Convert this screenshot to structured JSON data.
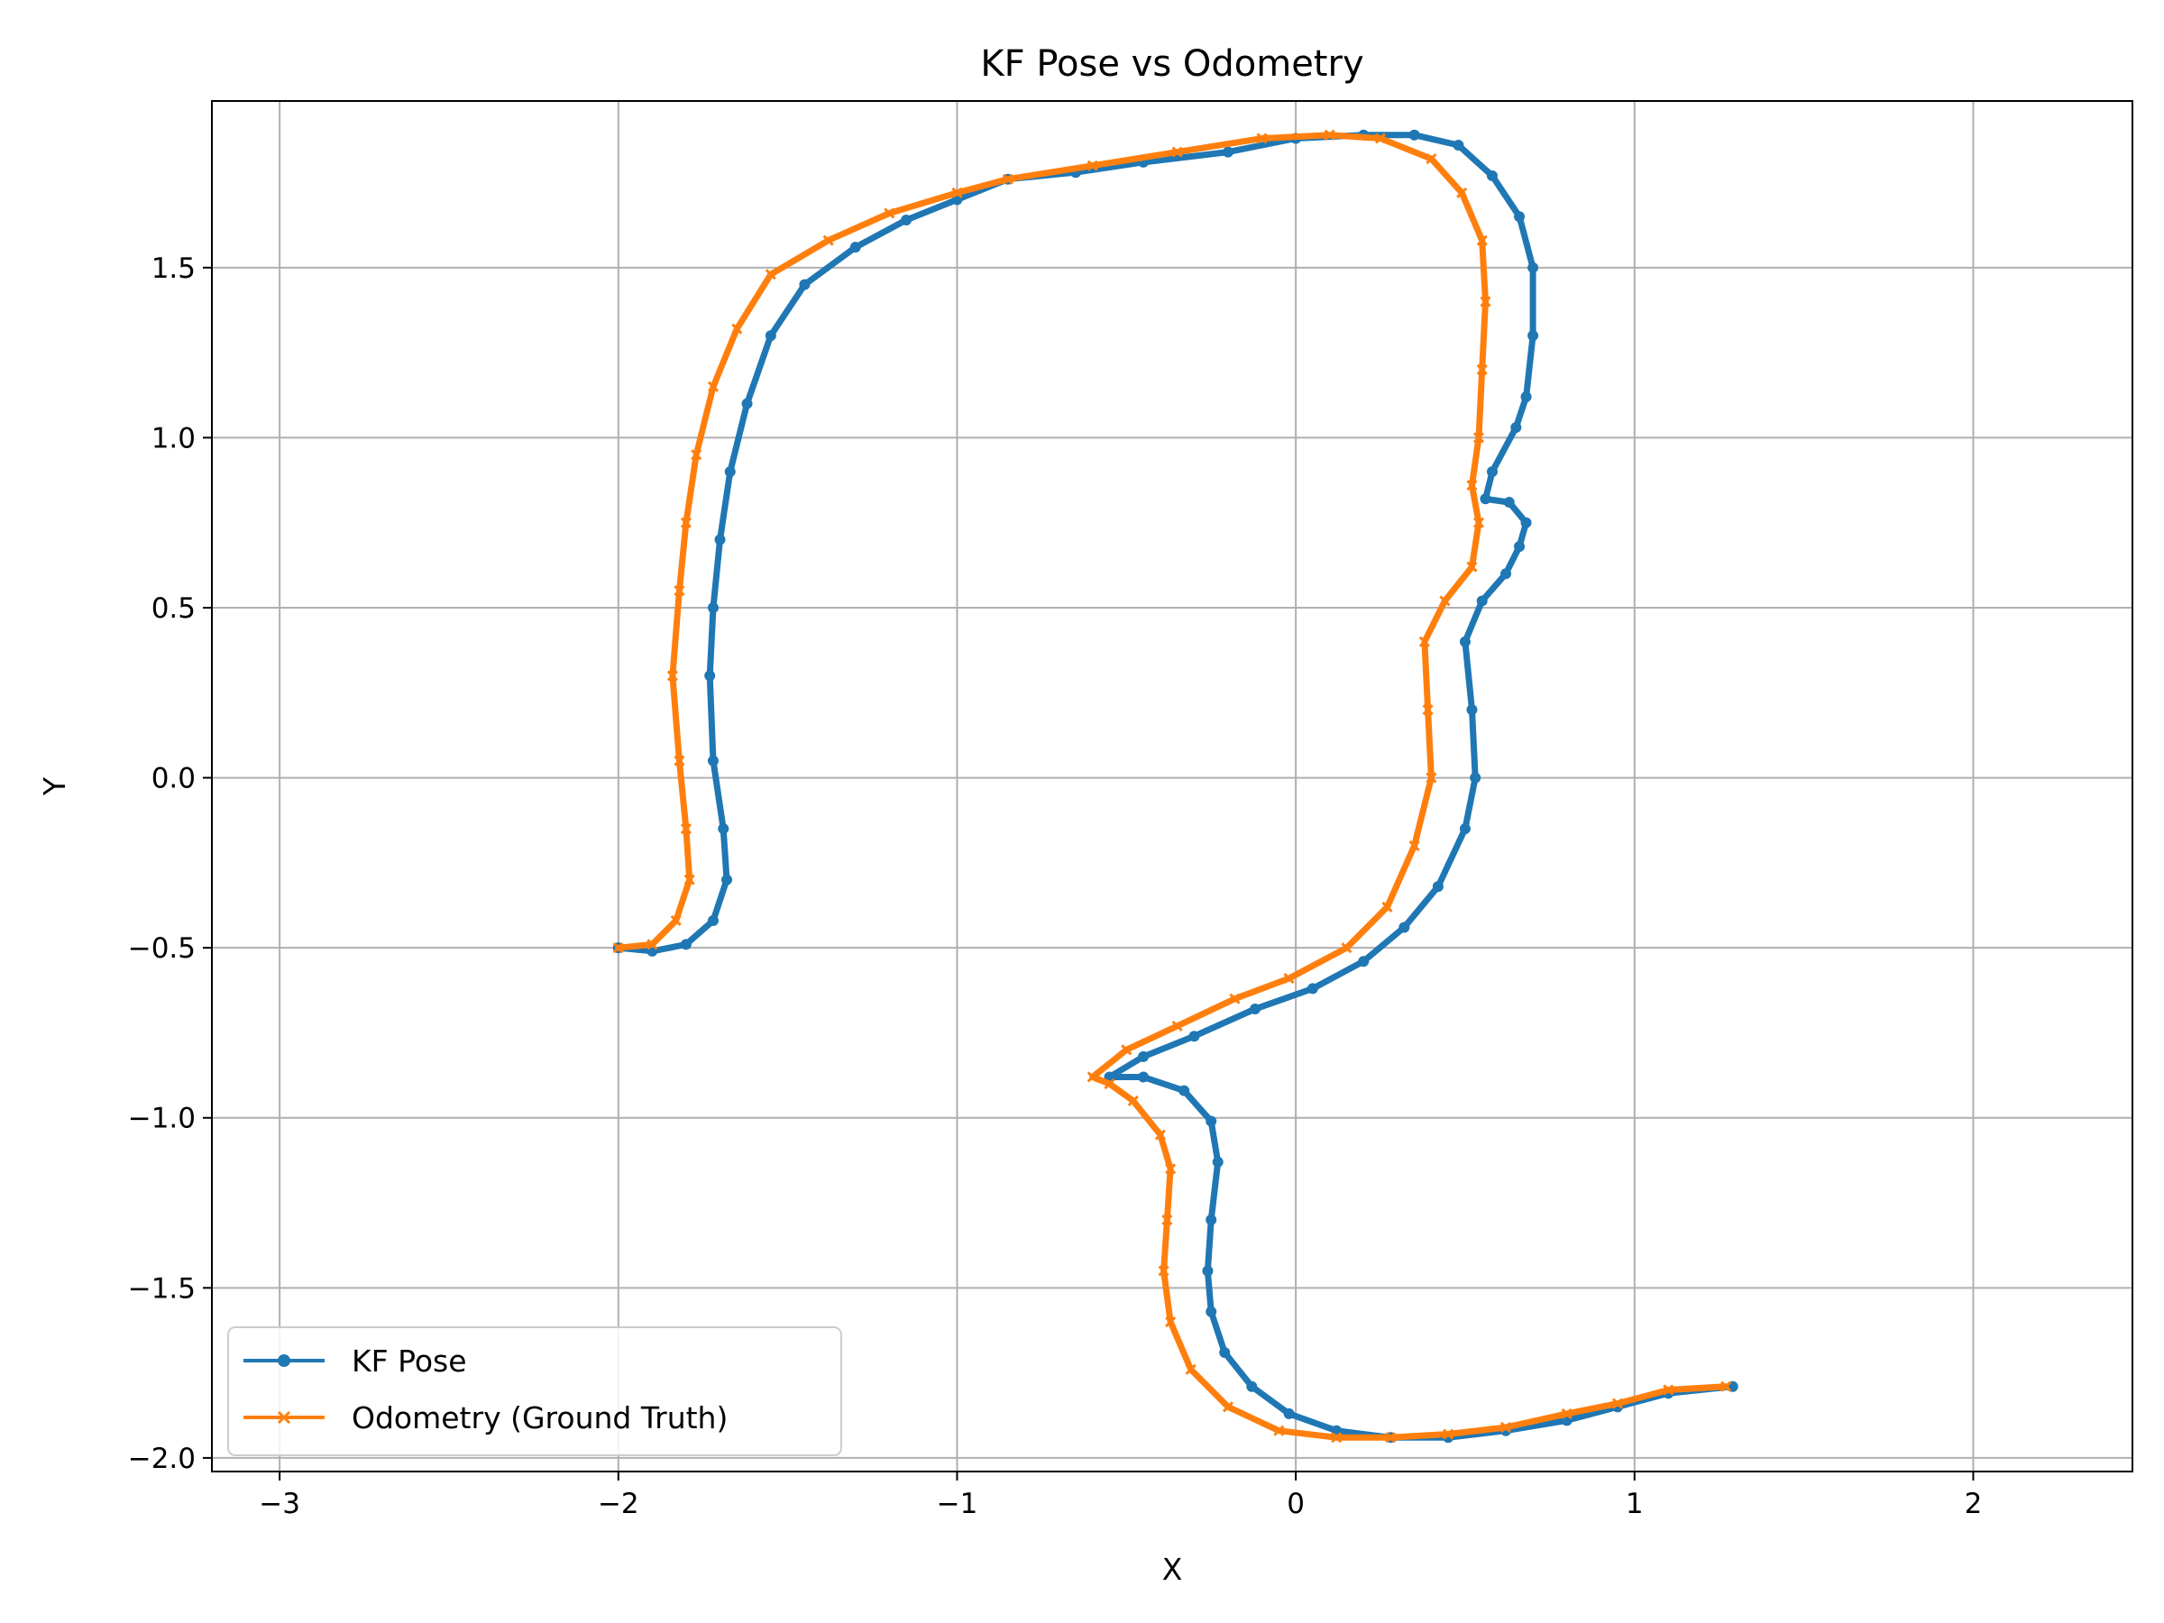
{
  "chart_data": {
    "type": "line",
    "title": "KF Pose vs Odometry",
    "xlabel": "X",
    "ylabel": "Y",
    "xlim": [
      -3.2,
      2.47
    ],
    "ylim": [
      -2.04,
      1.99
    ],
    "grid": true,
    "legend_position": "bottom-left",
    "x_ticks": [
      {
        "value": -3,
        "label": "−3"
      },
      {
        "value": -2,
        "label": "−2"
      },
      {
        "value": -1,
        "label": "−1"
      },
      {
        "value": 0,
        "label": "0"
      },
      {
        "value": 1,
        "label": "1"
      },
      {
        "value": 2,
        "label": "2"
      }
    ],
    "y_ticks": [
      {
        "value": -2.0,
        "label": "−2.0"
      },
      {
        "value": -1.5,
        "label": "−1.5"
      },
      {
        "value": -1.0,
        "label": "−1.0"
      },
      {
        "value": -0.5,
        "label": "−0.5"
      },
      {
        "value": 0.0,
        "label": "0.0"
      },
      {
        "value": 0.5,
        "label": "0.5"
      },
      {
        "value": 1.0,
        "label": "1.0"
      },
      {
        "value": 1.5,
        "label": "1.5"
      }
    ],
    "series": [
      {
        "name": "KF Pose",
        "color": "#1f77b4",
        "marker": "circle",
        "points": [
          [
            1.29,
            -1.79
          ],
          [
            1.1,
            -1.81
          ],
          [
            0.95,
            -1.85
          ],
          [
            0.8,
            -1.89
          ],
          [
            0.62,
            -1.92
          ],
          [
            0.45,
            -1.94
          ],
          [
            0.28,
            -1.94
          ],
          [
            0.12,
            -1.92
          ],
          [
            -0.02,
            -1.87
          ],
          [
            -0.13,
            -1.79
          ],
          [
            -0.21,
            -1.69
          ],
          [
            -0.25,
            -1.57
          ],
          [
            -0.26,
            -1.45
          ],
          [
            -0.25,
            -1.3
          ],
          [
            -0.23,
            -1.13
          ],
          [
            -0.25,
            -1.01
          ],
          [
            -0.33,
            -0.92
          ],
          [
            -0.45,
            -0.88
          ],
          [
            -0.55,
            -0.88
          ],
          [
            -0.45,
            -0.82
          ],
          [
            -0.3,
            -0.76
          ],
          [
            -0.12,
            -0.68
          ],
          [
            0.05,
            -0.62
          ],
          [
            0.2,
            -0.54
          ],
          [
            0.32,
            -0.44
          ],
          [
            0.42,
            -0.32
          ],
          [
            0.5,
            -0.15
          ],
          [
            0.53,
            0.0
          ],
          [
            0.52,
            0.2
          ],
          [
            0.5,
            0.4
          ],
          [
            0.55,
            0.52
          ],
          [
            0.62,
            0.6
          ],
          [
            0.66,
            0.68
          ],
          [
            0.68,
            0.75
          ],
          [
            0.63,
            0.81
          ],
          [
            0.56,
            0.82
          ],
          [
            0.58,
            0.9
          ],
          [
            0.65,
            1.03
          ],
          [
            0.68,
            1.12
          ],
          [
            0.7,
            1.3
          ],
          [
            0.7,
            1.5
          ],
          [
            0.66,
            1.65
          ],
          [
            0.58,
            1.77
          ],
          [
            0.48,
            1.86
          ],
          [
            0.35,
            1.89
          ],
          [
            0.2,
            1.89
          ],
          [
            0.0,
            1.88
          ],
          [
            -0.2,
            1.84
          ],
          [
            -0.45,
            1.81
          ],
          [
            -0.65,
            1.78
          ],
          [
            -0.85,
            1.76
          ],
          [
            -1.0,
            1.7
          ],
          [
            -1.15,
            1.64
          ],
          [
            -1.3,
            1.56
          ],
          [
            -1.45,
            1.45
          ],
          [
            -1.55,
            1.3
          ],
          [
            -1.62,
            1.1
          ],
          [
            -1.67,
            0.9
          ],
          [
            -1.7,
            0.7
          ],
          [
            -1.72,
            0.5
          ],
          [
            -1.73,
            0.3
          ],
          [
            -1.72,
            0.05
          ],
          [
            -1.69,
            -0.15
          ],
          [
            -1.68,
            -0.3
          ],
          [
            -1.72,
            -0.42
          ],
          [
            -1.8,
            -0.49
          ],
          [
            -1.9,
            -0.51
          ],
          [
            -2.0,
            -0.5
          ]
        ]
      },
      {
        "name": "Odometry (Ground Truth)",
        "color": "#ff7f0e",
        "marker": "x",
        "points": [
          [
            1.27,
            -1.79
          ],
          [
            1.1,
            -1.8
          ],
          [
            0.95,
            -1.84
          ],
          [
            0.8,
            -1.87
          ],
          [
            0.62,
            -1.91
          ],
          [
            0.45,
            -1.93
          ],
          [
            0.28,
            -1.94
          ],
          [
            0.12,
            -1.94
          ],
          [
            -0.05,
            -1.92
          ],
          [
            -0.2,
            -1.85
          ],
          [
            -0.31,
            -1.74
          ],
          [
            -0.37,
            -1.6
          ],
          [
            -0.39,
            -1.45
          ],
          [
            -0.38,
            -1.3
          ],
          [
            -0.37,
            -1.15
          ],
          [
            -0.4,
            -1.05
          ],
          [
            -0.48,
            -0.95
          ],
          [
            -0.55,
            -0.9
          ],
          [
            -0.6,
            -0.88
          ],
          [
            -0.5,
            -0.8
          ],
          [
            -0.35,
            -0.73
          ],
          [
            -0.18,
            -0.65
          ],
          [
            -0.02,
            -0.59
          ],
          [
            0.15,
            -0.5
          ],
          [
            0.27,
            -0.38
          ],
          [
            0.35,
            -0.2
          ],
          [
            0.4,
            0.0
          ],
          [
            0.39,
            0.2
          ],
          [
            0.38,
            0.4
          ],
          [
            0.44,
            0.52
          ],
          [
            0.52,
            0.62
          ],
          [
            0.54,
            0.75
          ],
          [
            0.52,
            0.86
          ],
          [
            0.54,
            1.0
          ],
          [
            0.55,
            1.2
          ],
          [
            0.56,
            1.4
          ],
          [
            0.55,
            1.58
          ],
          [
            0.49,
            1.72
          ],
          [
            0.4,
            1.82
          ],
          [
            0.25,
            1.88
          ],
          [
            0.1,
            1.89
          ],
          [
            -0.1,
            1.88
          ],
          [
            -0.35,
            1.84
          ],
          [
            -0.6,
            1.8
          ],
          [
            -0.85,
            1.76
          ],
          [
            -1.0,
            1.72
          ],
          [
            -1.2,
            1.66
          ],
          [
            -1.38,
            1.58
          ],
          [
            -1.55,
            1.48
          ],
          [
            -1.65,
            1.32
          ],
          [
            -1.72,
            1.15
          ],
          [
            -1.77,
            0.95
          ],
          [
            -1.8,
            0.75
          ],
          [
            -1.82,
            0.55
          ],
          [
            -1.84,
            0.3
          ],
          [
            -1.82,
            0.05
          ],
          [
            -1.8,
            -0.15
          ],
          [
            -1.79,
            -0.3
          ],
          [
            -1.83,
            -0.42
          ],
          [
            -1.9,
            -0.49
          ],
          [
            -2.0,
            -0.5
          ]
        ]
      }
    ]
  }
}
